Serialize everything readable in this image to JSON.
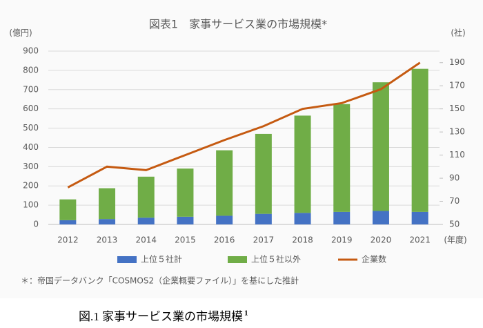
{
  "chart_data": {
    "type": "bar",
    "stacked": true,
    "title": "図表1　家事サービス業の市場規模*",
    "y_label": "(億円)",
    "y2_label": "(社)",
    "x_label": "(年度)",
    "categories": [
      "2012",
      "2013",
      "2014",
      "2015",
      "2016",
      "2017",
      "2018",
      "2019",
      "2020",
      "2021"
    ],
    "series": [
      {
        "name": "上位５社計",
        "color": "#4472c4",
        "values": [
          22,
          28,
          35,
          40,
          45,
          55,
          60,
          65,
          70,
          65
        ]
      },
      {
        "name": "上位５社以外",
        "color": "#70ad47",
        "values": [
          108,
          160,
          213,
          250,
          340,
          415,
          505,
          560,
          668,
          743
        ]
      },
      {
        "name": "企業数",
        "color": "#c55a11",
        "type": "line",
        "axis": "y2",
        "values": [
          82,
          100,
          97,
          110,
          123,
          135,
          150,
          155,
          167,
          190
        ]
      }
    ],
    "ylim": [
      0,
      900
    ],
    "yticks": [
      0,
      100,
      200,
      300,
      400,
      500,
      600,
      700,
      800,
      900
    ],
    "y2lim": [
      50,
      200
    ],
    "y2ticks": [
      50,
      70,
      90,
      110,
      130,
      150,
      170,
      190
    ],
    "grid": true,
    "legend": "bottom",
    "footnote": "＊：帝国データバンク「COSMOS2（企業概要ファイル）」を基にした推計"
  },
  "caption": "図.1 家事サービス業の市場規模",
  "caption_note": "1"
}
